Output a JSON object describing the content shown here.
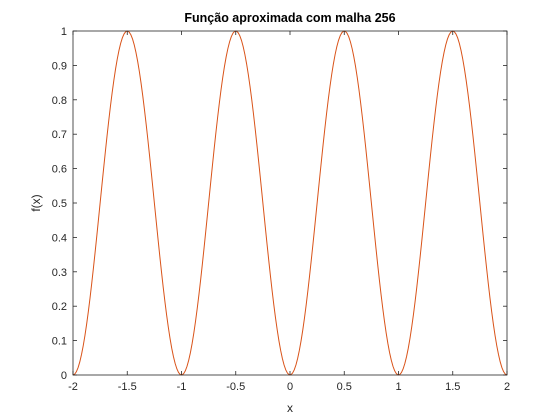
{
  "chart_data": {
    "type": "line",
    "title": "Função aproximada com malha 256",
    "xlabel": "x",
    "ylabel": "f(x)",
    "xlim": [
      -2,
      2
    ],
    "ylim": [
      0,
      1
    ],
    "xticks": [
      -2,
      -1.5,
      -1,
      -0.5,
      0,
      0.5,
      1,
      1.5,
      2
    ],
    "xtick_labels": [
      "-2",
      "-1.5",
      "-1",
      "-0.5",
      "0",
      "0.5",
      "1",
      "1.5",
      "2"
    ],
    "yticks": [
      0,
      0.1,
      0.2,
      0.3,
      0.4,
      0.5,
      0.6,
      0.7,
      0.8,
      0.9,
      1
    ],
    "ytick_labels": [
      "0",
      "0.1",
      "0.2",
      "0.3",
      "0.4",
      "0.5",
      "0.6",
      "0.7",
      "0.8",
      "0.9",
      "1"
    ],
    "grid": false,
    "legend": "none",
    "series": [
      {
        "color": "#d95319",
        "function": "sin(pi*x)^2",
        "x_range": [
          -2,
          2
        ],
        "points": 256
      }
    ],
    "colors": {
      "axes": "#262626",
      "background": "#ffffff",
      "line": "#d95319"
    }
  }
}
